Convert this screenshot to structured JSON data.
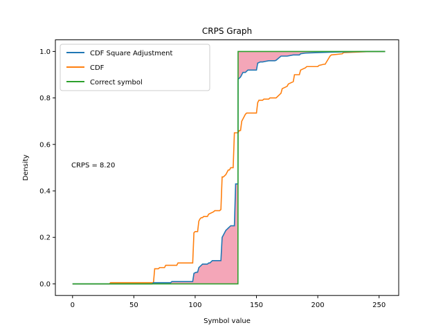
{
  "chart_data": {
    "type": "line",
    "title": "CRPS Graph",
    "xlabel": "Symbol value",
    "ylabel": "Density",
    "xlim": [
      -14,
      266
    ],
    "ylim": [
      -0.05,
      1.05
    ],
    "xticks": [
      0,
      50,
      100,
      150,
      200,
      250
    ],
    "yticks": [
      0.0,
      0.2,
      0.4,
      0.6,
      0.8,
      1.0
    ],
    "xtick_labels": [
      "0",
      "50",
      "100",
      "150",
      "200",
      "250"
    ],
    "ytick_labels": [
      "0.0",
      "0.2",
      "0.4",
      "0.6",
      "0.8",
      "1.0"
    ],
    "grid": false,
    "legend_position": "top-left",
    "annotation": "CRPS = 8.20",
    "series": [
      {
        "name": "CDF Square Adjustment",
        "color": "#1f77b4",
        "x": [
          0,
          65,
          66,
          80,
          81,
          98,
          99,
          100,
          101,
          102,
          103,
          104,
          105,
          106,
          110,
          111,
          112,
          114,
          115,
          120,
          121,
          122,
          123,
          124,
          125,
          126,
          127,
          128,
          129,
          131,
          132,
          133,
          134,
          134.9,
          135,
          136,
          137,
          138,
          139,
          140,
          141,
          142,
          143,
          150,
          151,
          152,
          153,
          154,
          155,
          160,
          165,
          166,
          170,
          175,
          180,
          185,
          186,
          190,
          200,
          210,
          220,
          230,
          240,
          255
        ],
        "y": [
          0,
          0,
          0.005,
          0.005,
          0.01,
          0.01,
          0.045,
          0.048,
          0.05,
          0.05,
          0.07,
          0.075,
          0.08,
          0.085,
          0.085,
          0.09,
          0.09,
          0.1,
          0.1,
          0.1,
          0.1,
          0.2,
          0.21,
          0.22,
          0.23,
          0.235,
          0.24,
          0.245,
          0.25,
          0.25,
          0.25,
          0.43,
          0.43,
          0.43,
          0.88,
          0.885,
          0.89,
          0.9,
          0.91,
          0.91,
          0.91,
          0.915,
          0.92,
          0.92,
          0.95,
          0.952,
          0.955,
          0.955,
          0.955,
          0.96,
          0.96,
          0.962,
          0.98,
          0.98,
          0.985,
          0.985,
          0.99,
          0.993,
          0.995,
          0.997,
          0.998,
          0.999,
          1.0,
          1.0
        ]
      },
      {
        "name": "CDF",
        "color": "#ff7f0e",
        "x": [
          0,
          30,
          31,
          66,
          67,
          70,
          71,
          75,
          76,
          85,
          86,
          98,
          99,
          100,
          101,
          102,
          103,
          104,
          105,
          106,
          107,
          110,
          111,
          115,
          116,
          120,
          121,
          122,
          123,
          125,
          126,
          127,
          128,
          129,
          131,
          132,
          133,
          134,
          134.9,
          135,
          136,
          137,
          138,
          139,
          140,
          141,
          142,
          143,
          150,
          151,
          152,
          155,
          156,
          160,
          161,
          165,
          166,
          170,
          171,
          175,
          176,
          180,
          181,
          185,
          186,
          190,
          191,
          200,
          201,
          205,
          206,
          210,
          211,
          220,
          221,
          230,
          240,
          255
        ],
        "y": [
          0,
          0,
          0.005,
          0.005,
          0.065,
          0.065,
          0.07,
          0.07,
          0.08,
          0.08,
          0.09,
          0.09,
          0.22,
          0.225,
          0.225,
          0.225,
          0.27,
          0.28,
          0.285,
          0.285,
          0.29,
          0.29,
          0.3,
          0.31,
          0.315,
          0.315,
          0.32,
          0.46,
          0.46,
          0.47,
          0.48,
          0.49,
          0.49,
          0.5,
          0.5,
          0.65,
          0.65,
          0.65,
          0.65,
          0.65,
          0.66,
          0.66,
          0.7,
          0.71,
          0.72,
          0.73,
          0.735,
          0.735,
          0.735,
          0.78,
          0.79,
          0.79,
          0.795,
          0.795,
          0.8,
          0.8,
          0.8,
          0.82,
          0.84,
          0.85,
          0.86,
          0.87,
          0.9,
          0.9,
          0.92,
          0.93,
          0.935,
          0.935,
          0.94,
          0.945,
          0.945,
          0.98,
          0.985,
          0.99,
          0.995,
          0.997,
          0.999,
          1.0
        ]
      },
      {
        "name": "Correct symbol",
        "color": "#2ca02c",
        "x": [
          0,
          134.9,
          135,
          255
        ],
        "y": [
          0,
          0,
          1,
          1
        ]
      }
    ]
  },
  "fill": {
    "color": "#f4a6b8",
    "description": "area between CDF Square Adjustment and Correct symbol"
  }
}
